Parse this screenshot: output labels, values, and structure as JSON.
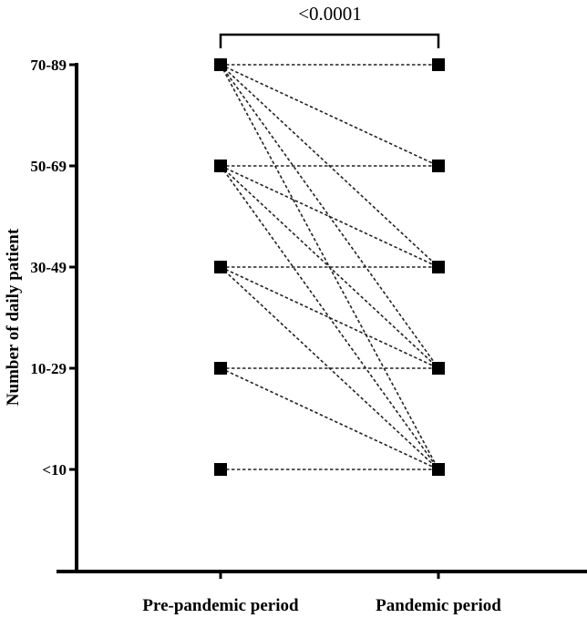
{
  "chart_data": {
    "type": "line",
    "title": "",
    "xlabel": "",
    "ylabel": "Number of daily patient",
    "categories": [
      "Pre-pandemic period",
      "Pandemic period"
    ],
    "y_levels": [
      "<10",
      "10-29",
      "30-49",
      "50-69",
      "70-89"
    ],
    "pairs": [
      [
        "70-89",
        "70-89"
      ],
      [
        "70-89",
        "50-69"
      ],
      [
        "70-89",
        "30-49"
      ],
      [
        "70-89",
        "10-29"
      ],
      [
        "70-89",
        "<10"
      ],
      [
        "50-69",
        "50-69"
      ],
      [
        "50-69",
        "30-49"
      ],
      [
        "50-69",
        "10-29"
      ],
      [
        "50-69",
        "<10"
      ],
      [
        "30-49",
        "30-49"
      ],
      [
        "30-49",
        "10-29"
      ],
      [
        "30-49",
        "<10"
      ],
      [
        "10-29",
        "10-29"
      ],
      [
        "10-29",
        "<10"
      ],
      [
        "<10",
        "<10"
      ]
    ],
    "annotation": "<0.0001",
    "grid": false,
    "legend": "none"
  }
}
